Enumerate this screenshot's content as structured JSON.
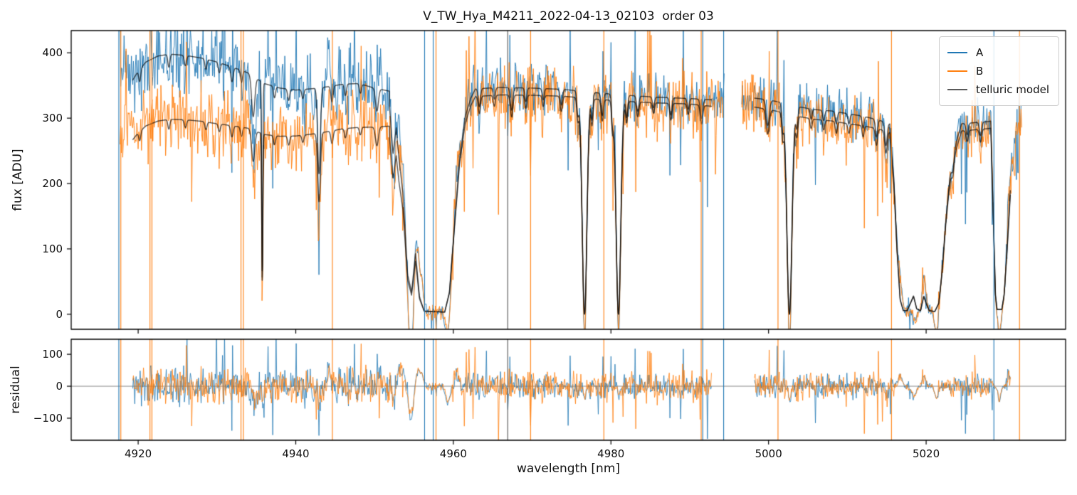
{
  "chart_data": {
    "type": "line",
    "title": "V_TW_Hya_M4211_2022-04-13_02103  order 03",
    "xlabel": "wavelength [nm]",
    "xlim": [
      4911.5,
      5037.7
    ],
    "x_ticks": [
      4920,
      4940,
      4960,
      4980,
      5000,
      5020
    ],
    "panels": [
      {
        "name": "flux",
        "ylabel": "flux [ADU]",
        "ylim": [
          -23,
          434
        ],
        "y_ticks": [
          0,
          100,
          200,
          300,
          400
        ],
        "zero_line": false
      },
      {
        "name": "residual",
        "ylabel": "residual",
        "ylim": [
          -169,
          147
        ],
        "y_ticks": [
          -100,
          0,
          100
        ],
        "zero_line": true
      }
    ],
    "legend": {
      "position": "upper right",
      "entries": [
        {
          "label": "A",
          "color": "#1f77b4"
        },
        {
          "label": "B",
          "color": "#ff7f0e"
        },
        {
          "label": "telluric model",
          "color": "#595959"
        }
      ]
    },
    "series": {
      "A": {
        "color": "#1f77b4",
        "seed": 7,
        "noise": {
          "rel_left": 0.065,
          "rel": 0.045,
          "abs": 5,
          "p_down": 0.012,
          "down_scale": 42,
          "p_up": 0.006,
          "up_scale": 50
        }
      },
      "B": {
        "color": "#ff7f0e",
        "seed": 13,
        "noise": {
          "rel_left": 0.075,
          "rel": 0.055,
          "abs": 6,
          "p_down": 0.026,
          "down_scale": 46,
          "p_up": 0.01,
          "up_scale": 55
        }
      },
      "telluric_model": {
        "color": "#565656"
      }
    },
    "spectrum_model": {
      "noise_left_boundary_nm": 4955,
      "sample_step_nm": 0.085,
      "data_segments_nm": [
        [
          4917.7,
          4994.4
        ],
        [
          4996.6,
          5032.2
        ]
      ],
      "model_segments_nm": [
        [
          4919.3,
          4992.8
        ],
        [
          4998.2,
          5030.7
        ]
      ],
      "continuum_A_anchors": [
        [
          4919.3,
          358
        ],
        [
          4920,
          372
        ],
        [
          4921,
          386
        ],
        [
          4922.5,
          395
        ],
        [
          4924,
          398
        ],
        [
          4926,
          396
        ],
        [
          4928,
          392
        ],
        [
          4930,
          386
        ],
        [
          4932,
          378
        ],
        [
          4934,
          369
        ],
        [
          4936,
          353
        ],
        [
          4938,
          346
        ],
        [
          4940,
          343
        ],
        [
          4942,
          345
        ],
        [
          4944,
          348
        ],
        [
          4946,
          352
        ],
        [
          4948,
          353
        ],
        [
          4950,
          346
        ],
        [
          4952,
          341
        ],
        [
          4954,
          337
        ],
        [
          4957,
          335
        ],
        [
          4960,
          341
        ],
        [
          4963,
          345
        ],
        [
          4966,
          347
        ],
        [
          4970,
          346
        ],
        [
          4974,
          344
        ],
        [
          4978,
          339
        ],
        [
          4982,
          335
        ],
        [
          4986,
          332
        ],
        [
          4990,
          330
        ],
        [
          4993,
          328
        ],
        [
          4998,
          331
        ],
        [
          5000,
          328
        ],
        [
          5002,
          323
        ],
        [
          5004,
          317
        ],
        [
          5006,
          313
        ],
        [
          5008,
          311
        ],
        [
          5010,
          307
        ],
        [
          5012,
          303
        ],
        [
          5014,
          297
        ],
        [
          5016,
          289
        ],
        [
          5018,
          284
        ],
        [
          5020,
          282
        ],
        [
          5022,
          286
        ],
        [
          5024,
          291
        ],
        [
          5026,
          293
        ],
        [
          5028,
          295
        ],
        [
          5030,
          301
        ],
        [
          5032,
          311
        ]
      ],
      "b_to_a_ratio_anchors": [
        [
          4919,
          0.745
        ],
        [
          4930,
          0.755
        ],
        [
          4940,
          0.795
        ],
        [
          4948,
          0.81
        ],
        [
          4955,
          0.87
        ],
        [
          4960,
          0.965
        ],
        [
          4975,
          0.97
        ],
        [
          4990,
          0.975
        ],
        [
          5000,
          0.955
        ],
        [
          5010,
          0.95
        ],
        [
          5020,
          0.96
        ],
        [
          5032,
          0.965
        ]
      ],
      "telluric_lines": [
        [
          4920.2,
          0.18,
          0.05
        ],
        [
          4923.9,
          0.18,
          0.05
        ],
        [
          4926.0,
          0.2,
          0.04
        ],
        [
          4928.6,
          0.18,
          0.04
        ],
        [
          4930.3,
          0.18,
          0.04
        ],
        [
          4931.9,
          0.22,
          0.06
        ],
        [
          4933.1,
          0.18,
          0.05
        ],
        [
          4934.6,
          0.28,
          0.17
        ],
        [
          4935.75,
          0.1,
          0.82
        ],
        [
          4937.3,
          0.18,
          0.05
        ],
        [
          4939.1,
          0.18,
          0.05
        ],
        [
          4940.9,
          0.18,
          0.04
        ],
        [
          4942.95,
          0.24,
          0.38
        ],
        [
          4944.6,
          0.2,
          0.07
        ],
        [
          4946.3,
          0.18,
          0.05
        ],
        [
          4948.2,
          0.18,
          0.04
        ],
        [
          4950.3,
          0.26,
          0.1
        ],
        [
          4963.3,
          0.2,
          0.08
        ],
        [
          4965.2,
          0.18,
          0.05
        ],
        [
          4967.4,
          0.22,
          0.1
        ],
        [
          4969.2,
          0.18,
          0.06
        ],
        [
          4971.4,
          0.18,
          0.05
        ],
        [
          4973.7,
          0.2,
          0.07
        ],
        [
          4975.8,
          0.18,
          0.1
        ],
        [
          4976.65,
          0.42,
          1.0
        ],
        [
          4977.6,
          0.18,
          0.12
        ],
        [
          4978.9,
          0.2,
          0.1
        ],
        [
          4980.2,
          0.18,
          0.12
        ],
        [
          4980.95,
          0.42,
          1.0
        ],
        [
          4982.0,
          0.18,
          0.1
        ],
        [
          4983.4,
          0.2,
          0.07
        ],
        [
          4985.4,
          0.18,
          0.05
        ],
        [
          4987.6,
          0.2,
          0.08
        ],
        [
          4989.8,
          0.18,
          0.05
        ],
        [
          4991.5,
          0.22,
          0.09
        ],
        [
          4999.9,
          0.28,
          0.12
        ],
        [
          5001.8,
          0.18,
          0.12
        ],
        [
          5002.65,
          0.45,
          1.0
        ],
        [
          5003.6,
          0.18,
          0.1
        ],
        [
          5005.4,
          0.18,
          0.05
        ],
        [
          5007.0,
          0.18,
          0.05
        ],
        [
          5008.6,
          0.18,
          0.06
        ],
        [
          5010.2,
          0.18,
          0.05
        ],
        [
          5012.0,
          0.18,
          0.06
        ],
        [
          5013.7,
          0.2,
          0.09
        ],
        [
          5014.9,
          0.22,
          0.12
        ],
        [
          5023.4,
          0.2,
          0.08
        ],
        [
          5025.2,
          0.2,
          0.06
        ],
        [
          5026.9,
          0.2,
          0.07
        ],
        [
          5031.2,
          0.2,
          0.1
        ]
      ],
      "deep_features": [
        {
          "transmission_anchors": [
            [
              4951.9,
              0.93
            ],
            [
              4952.35,
              0.72
            ],
            [
              4952.75,
              0.84
            ],
            [
              4953.1,
              0.7
            ],
            [
              4953.6,
              0.55
            ],
            [
              4954.2,
              0.18
            ],
            [
              4954.7,
              0.1
            ],
            [
              4955.2,
              0.28
            ],
            [
              4955.7,
              0.08
            ],
            [
              4956.3,
              0.015
            ],
            [
              4958.9,
              0.01
            ],
            [
              4959.5,
              0.1
            ],
            [
              4960.1,
              0.38
            ],
            [
              4960.8,
              0.7
            ],
            [
              4961.5,
              0.88
            ],
            [
              4962.2,
              0.96
            ],
            [
              4962.8,
              1.0
            ]
          ]
        },
        {
          "transmission_anchors": [
            [
              5015.4,
              0.97
            ],
            [
              5015.9,
              0.72
            ],
            [
              5016.3,
              0.35
            ],
            [
              5016.7,
              0.08
            ],
            [
              5017.1,
              0.02
            ],
            [
              5017.6,
              0.02
            ],
            [
              5018.1,
              0.07
            ],
            [
              5018.4,
              0.1
            ],
            [
              5018.8,
              0.03
            ],
            [
              5019.3,
              0.02
            ],
            [
              5019.7,
              0.1
            ],
            [
              5020.0,
              0.06
            ],
            [
              5020.4,
              0.02
            ],
            [
              5021.1,
              0.015
            ],
            [
              5021.6,
              0.06
            ],
            [
              5022.0,
              0.22
            ],
            [
              5022.5,
              0.5
            ],
            [
              5023.0,
              0.72
            ],
            [
              5023.5,
              0.85
            ],
            [
              5024.0,
              0.93
            ],
            [
              5024.5,
              1.0
            ]
          ]
        },
        {
          "transmission_anchors": [
            [
              5028.2,
              1.0
            ],
            [
              5028.5,
              0.55
            ],
            [
              5028.8,
              0.1
            ],
            [
              5029.0,
              0.025
            ],
            [
              5029.6,
              0.025
            ],
            [
              5029.9,
              0.1
            ],
            [
              5030.3,
              0.35
            ],
            [
              5030.8,
              0.7
            ],
            [
              5031.3,
              0.92
            ],
            [
              5031.8,
              1.0
            ]
          ]
        }
      ],
      "systematic_offsets": [
        [
          4918.4,
          0.8,
          26
        ],
        [
          4934.9,
          0.3,
          -55
        ],
        [
          4935.9,
          0.22,
          -65
        ],
        [
          4943.0,
          0.22,
          -40
        ],
        [
          4944.2,
          0.28,
          38
        ],
        [
          4950.6,
          0.5,
          28
        ],
        [
          4952.4,
          0.3,
          -42
        ],
        [
          4953.3,
          0.45,
          75
        ],
        [
          4954.6,
          0.4,
          -105
        ],
        [
          4955.7,
          0.5,
          50
        ],
        [
          4959.3,
          0.4,
          -52
        ],
        [
          4960.4,
          0.35,
          42
        ],
        [
          4976.7,
          0.18,
          -42
        ],
        [
          4981.0,
          0.18,
          -42
        ],
        [
          5002.7,
          0.22,
          -48
        ],
        [
          5015.0,
          0.28,
          -32
        ],
        [
          5016.7,
          0.32,
          36
        ],
        [
          5018.4,
          0.4,
          -30
        ],
        [
          5019.8,
          0.32,
          30
        ],
        [
          5021.3,
          0.28,
          -40
        ],
        [
          5029.3,
          0.22,
          -50
        ],
        [
          5030.4,
          0.28,
          36
        ]
      ],
      "vertical_spikes": [
        {
          "wavelength": 4917.55,
          "series": "A"
        },
        {
          "wavelength": 4917.8,
          "series": "B"
        },
        {
          "wavelength": 4921.5,
          "series": "B"
        },
        {
          "wavelength": 4921.75,
          "series": "B"
        },
        {
          "wavelength": 4933.05,
          "series": "B"
        },
        {
          "wavelength": 4933.35,
          "series": "B"
        },
        {
          "wavelength": 4944.65,
          "series": "B"
        },
        {
          "wavelength": 4956.35,
          "series": "A"
        },
        {
          "wavelength": 4957.45,
          "series": "A"
        },
        {
          "wavelength": 4957.8,
          "series": "B"
        },
        {
          "wavelength": 4966.9,
          "series": "model"
        },
        {
          "wavelength": 4969.8,
          "series": "B"
        },
        {
          "wavelength": 4979.1,
          "series": "B"
        },
        {
          "wavelength": 4991.45,
          "series": "B"
        },
        {
          "wavelength": 4991.65,
          "series": "A"
        },
        {
          "wavelength": 4994.3,
          "series": "A"
        },
        {
          "wavelength": 5001.2,
          "series": "B"
        },
        {
          "wavelength": 5015.6,
          "series": "B"
        },
        {
          "wavelength": 5028.6,
          "series": "A"
        },
        {
          "wavelength": 5031.85,
          "series": "B"
        }
      ]
    }
  }
}
